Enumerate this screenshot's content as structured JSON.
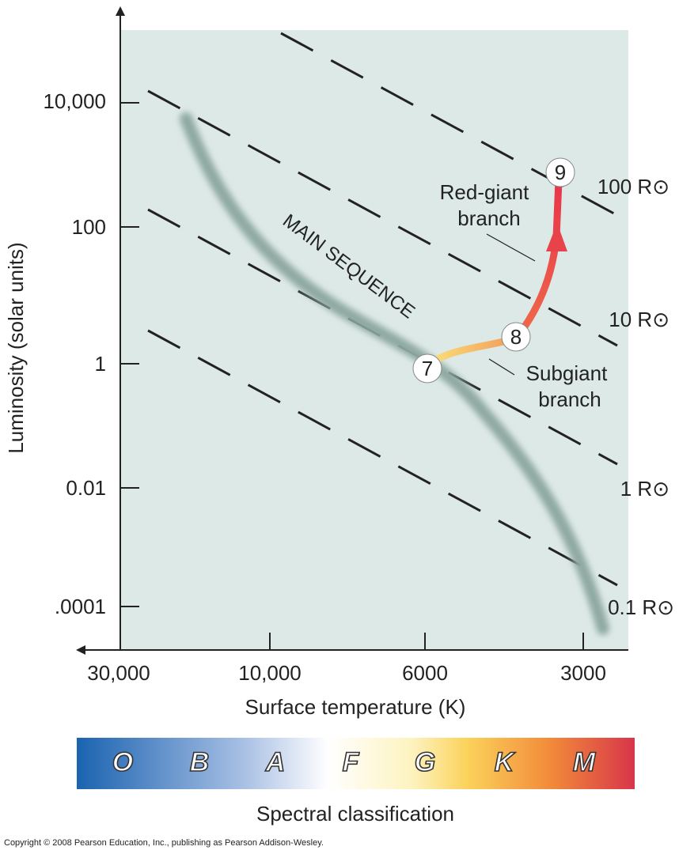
{
  "y_axis": {
    "title": "Luminosity (solar units)",
    "ticks": [
      "10,000",
      "100",
      "1",
      "0.01",
      ".0001"
    ]
  },
  "x_axis": {
    "title": "Surface temperature (K)",
    "ticks": [
      "30,000",
      "10,000",
      "6000",
      "3000"
    ]
  },
  "radius_lines": [
    "100 R⊙",
    "10 R⊙",
    "1 R⊙",
    "0.1 R⊙"
  ],
  "main_sequence_label": "MAIN SEQUENCE",
  "annotations": {
    "red_giant": [
      "Red-giant",
      "branch"
    ],
    "subgiant": [
      "Subgiant",
      "branch"
    ]
  },
  "stages": [
    "7",
    "8",
    "9"
  ],
  "spectral": {
    "classes": [
      "O",
      "B",
      "A",
      "F",
      "G",
      "K",
      "M"
    ],
    "title": "Spectral classification"
  },
  "copyright": "Copyright © 2008 Pearson Education, Inc., publishing as Pearson Addison-Wesley."
}
